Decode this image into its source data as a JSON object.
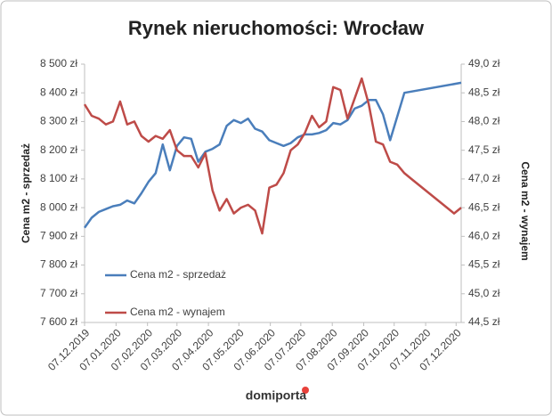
{
  "chart_data": {
    "type": "line",
    "title": "Rynek nieruchomości: Wrocław",
    "ylabel": "Cena m2 - sprzedaż",
    "y2label": "Cena m2 - wynajem",
    "footer": "domiporta",
    "xlim": [
      "2019-12-07",
      "2020-12-12"
    ],
    "xticks": [
      {
        "value": "2019-12-07",
        "label": "07.12.2019"
      },
      {
        "value": "2020-01-07",
        "label": "07.01.2020"
      },
      {
        "value": "2020-02-07",
        "label": "07.02.2020"
      },
      {
        "value": "2020-03-07",
        "label": "07.03.2020"
      },
      {
        "value": "2020-04-07",
        "label": "07.04.2020"
      },
      {
        "value": "2020-05-07",
        "label": "07.05.2020"
      },
      {
        "value": "2020-06-07",
        "label": "07.06.2020"
      },
      {
        "value": "2020-07-07",
        "label": "07.07.2020"
      },
      {
        "value": "2020-08-07",
        "label": "07.08.2020"
      },
      {
        "value": "2020-09-07",
        "label": "07.09.2020"
      },
      {
        "value": "2020-10-07",
        "label": "07.10.2020"
      },
      {
        "value": "2020-11-07",
        "label": "07.11.2020"
      },
      {
        "value": "2020-12-07",
        "label": "07.12.2020"
      }
    ],
    "ylim": [
      7600,
      8500
    ],
    "yticks": [
      {
        "value": 7600,
        "label": "7 600 zł"
      },
      {
        "value": 7700,
        "label": "7 700 zł"
      },
      {
        "value": 7800,
        "label": "7 800 zł"
      },
      {
        "value": 7900,
        "label": "7 900 zł"
      },
      {
        "value": 8000,
        "label": "8 000 zł"
      },
      {
        "value": 8100,
        "label": "8 100 zł"
      },
      {
        "value": 8200,
        "label": "8 200 zł"
      },
      {
        "value": 8300,
        "label": "8 300 zł"
      },
      {
        "value": 8400,
        "label": "8 400 zł"
      },
      {
        "value": 8500,
        "label": "8 500 zł"
      }
    ],
    "y2lim": [
      44.5,
      49.0
    ],
    "y2ticks": [
      {
        "value": 44.5,
        "label": "44,5 zł"
      },
      {
        "value": 45.0,
        "label": "45,0 zł"
      },
      {
        "value": 45.5,
        "label": "45,5 zł"
      },
      {
        "value": 46.0,
        "label": "46,0 zł"
      },
      {
        "value": 46.5,
        "label": "46,5 zł"
      },
      {
        "value": 47.0,
        "label": "47,0 zł"
      },
      {
        "value": 47.5,
        "label": "47,5 zł"
      },
      {
        "value": 48.0,
        "label": "48,0 zł"
      },
      {
        "value": 48.5,
        "label": "48,5 zł"
      },
      {
        "value": 49.0,
        "label": "49,0 zł"
      }
    ],
    "series": [
      {
        "name": "Cena m2 - sprzedaż",
        "color": "#4a7ebb",
        "x": [
          "2019-12-07",
          "2019-12-14",
          "2019-12-21",
          "2019-12-28",
          "2020-01-04",
          "2020-01-11",
          "2020-01-18",
          "2020-01-25",
          "2020-02-01",
          "2020-02-08",
          "2020-02-15",
          "2020-02-22",
          "2020-02-29",
          "2020-03-07",
          "2020-03-14",
          "2020-03-21",
          "2020-03-28",
          "2020-04-04",
          "2020-04-11",
          "2020-04-18",
          "2020-04-25",
          "2020-05-02",
          "2020-05-09",
          "2020-05-16",
          "2020-05-23",
          "2020-05-30",
          "2020-06-06",
          "2020-06-13",
          "2020-06-20",
          "2020-06-27",
          "2020-07-04",
          "2020-07-11",
          "2020-07-18",
          "2020-07-25",
          "2020-08-01",
          "2020-08-08",
          "2020-08-15",
          "2020-08-22",
          "2020-08-29",
          "2020-09-05",
          "2020-09-12",
          "2020-09-19",
          "2020-09-26",
          "2020-10-03",
          "2020-10-17",
          "2020-12-12"
        ],
        "values": [
          7930,
          7965,
          7985,
          7995,
          8005,
          8010,
          8025,
          8015,
          8050,
          8090,
          8120,
          8220,
          8130,
          8215,
          8245,
          8240,
          8160,
          8195,
          8205,
          8220,
          8285,
          8305,
          8295,
          8310,
          8275,
          8265,
          8235,
          8225,
          8215,
          8225,
          8245,
          8255,
          8255,
          8260,
          8270,
          8295,
          8290,
          8305,
          8345,
          8355,
          8375,
          8375,
          8325,
          8235,
          8400,
          8435
        ]
      },
      {
        "name": "Cena m2 - wynajem",
        "color": "#be4b48",
        "axis": "y2",
        "x": [
          "2019-12-07",
          "2019-12-14",
          "2019-12-21",
          "2019-12-28",
          "2020-01-04",
          "2020-01-11",
          "2020-01-18",
          "2020-01-25",
          "2020-02-01",
          "2020-02-08",
          "2020-02-15",
          "2020-02-22",
          "2020-02-29",
          "2020-03-07",
          "2020-03-14",
          "2020-03-21",
          "2020-03-28",
          "2020-04-04",
          "2020-04-11",
          "2020-04-18",
          "2020-04-25",
          "2020-05-02",
          "2020-05-09",
          "2020-05-16",
          "2020-05-23",
          "2020-05-30",
          "2020-06-06",
          "2020-06-13",
          "2020-06-20",
          "2020-06-27",
          "2020-07-04",
          "2020-07-11",
          "2020-07-18",
          "2020-07-25",
          "2020-08-01",
          "2020-08-08",
          "2020-08-15",
          "2020-08-22",
          "2020-08-29",
          "2020-09-05",
          "2020-09-12",
          "2020-09-19",
          "2020-09-26",
          "2020-10-03",
          "2020-10-10",
          "2020-10-17",
          "2020-10-24",
          "2020-12-05",
          "2020-12-12"
        ],
        "values": [
          48.3,
          48.1,
          48.05,
          47.95,
          48.0,
          48.35,
          47.95,
          48.0,
          47.75,
          47.65,
          47.75,
          47.7,
          47.85,
          47.5,
          47.4,
          47.4,
          47.2,
          47.45,
          46.8,
          46.45,
          46.65,
          46.4,
          46.5,
          46.55,
          46.45,
          46.05,
          46.85,
          46.9,
          47.1,
          47.5,
          47.6,
          47.8,
          48.1,
          47.9,
          48.0,
          48.6,
          48.55,
          48.05,
          48.4,
          48.75,
          48.3,
          47.65,
          47.6,
          47.3,
          47.25,
          47.1,
          47.0,
          46.4,
          46.5
        ]
      }
    ]
  }
}
